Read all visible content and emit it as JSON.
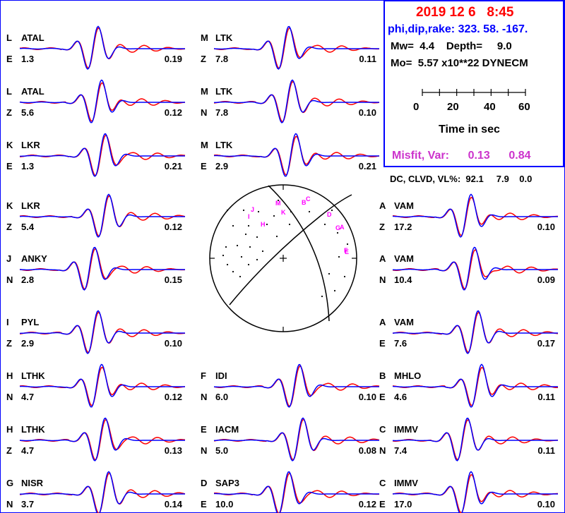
{
  "header": {
    "date": "2019 12 6",
    "time": "8:45",
    "mechanism_label": "phi,dip,rake:",
    "strike": "323.",
    "dip": "58.",
    "rake": "-167.",
    "mw_label": "Mw=",
    "mw": "4.4",
    "depth_label": "Depth=",
    "depth": "9.0",
    "mo_label": "Mo=",
    "mo": "5.57 x10**22 DYNECM",
    "time_ticks": [
      "0",
      "20",
      "40",
      "60"
    ],
    "time_label": "Time  in sec",
    "misfit_label": "Misfit, Var:",
    "misfit": "0.13",
    "var": "0.84"
  },
  "dc_clvd": {
    "label": "DC, CLVD, VL%:",
    "dc": "92.1",
    "clvd": "7.9",
    "vl": "0.0"
  },
  "colors": {
    "observed": "#ff0000",
    "synthetic": "#0000ff",
    "frame": "#0000ff",
    "title": "#ff0000",
    "misfit": "#cc33cc",
    "station_marker": "#ff00ff"
  },
  "stations": [
    {
      "letter": "L",
      "name": "ATAL",
      "comp": "E",
      "dist": "1.3",
      "amp": "0.19",
      "col": 0,
      "row": 0,
      "seed": 1
    },
    {
      "letter": "L",
      "name": "ATAL",
      "comp": "Z",
      "dist": "5.6",
      "amp": "0.12",
      "col": 0,
      "row": 1,
      "seed": 2
    },
    {
      "letter": "K",
      "name": "LKR",
      "comp": "E",
      "dist": "1.3",
      "amp": "0.21",
      "col": 0,
      "row": 2,
      "seed": 3
    },
    {
      "letter": "K",
      "name": "LKR",
      "comp": "Z",
      "dist": "5.4",
      "amp": "0.12",
      "col": 0,
      "row": 3,
      "seed": 4
    },
    {
      "letter": "J",
      "name": "ANKY",
      "comp": "N",
      "dist": "2.8",
      "amp": "0.15",
      "col": 0,
      "row": 4,
      "seed": 5
    },
    {
      "letter": "I",
      "name": "PYL",
      "comp": "Z",
      "dist": "2.9",
      "amp": "0.10",
      "col": 0,
      "row": 5,
      "seed": 6
    },
    {
      "letter": "H",
      "name": "LTHK",
      "comp": "N",
      "dist": "4.7",
      "amp": "0.12",
      "col": 0,
      "row": 6,
      "seed": 7
    },
    {
      "letter": "H",
      "name": "LTHK",
      "comp": "Z",
      "dist": "4.7",
      "amp": "0.13",
      "col": 0,
      "row": 7,
      "seed": 8
    },
    {
      "letter": "G",
      "name": "NISR",
      "comp": "N",
      "dist": "3.7",
      "amp": "0.14",
      "col": 0,
      "row": 8,
      "seed": 9
    },
    {
      "letter": "M",
      "name": "LTK",
      "comp": "Z",
      "dist": "7.8",
      "amp": "0.11",
      "col": 1,
      "row": 0,
      "seed": 10
    },
    {
      "letter": "M",
      "name": "LTK",
      "comp": "N",
      "dist": "7.8",
      "amp": "0.10",
      "col": 1,
      "row": 1,
      "seed": 11
    },
    {
      "letter": "M",
      "name": "LTK",
      "comp": "E",
      "dist": "2.9",
      "amp": "0.21",
      "col": 1,
      "row": 2,
      "seed": 12
    },
    {
      "letter": "F",
      "name": "IDI",
      "comp": "N",
      "dist": "6.0",
      "amp": "0.10",
      "col": 1,
      "row": 6,
      "seed": 13
    },
    {
      "letter": "E",
      "name": "IACM",
      "comp": "N",
      "dist": "5.0",
      "amp": "0.08",
      "col": 1,
      "row": 7,
      "seed": 14
    },
    {
      "letter": "D",
      "name": "SAP3",
      "comp": "E",
      "dist": "10.0",
      "amp": "0.12",
      "col": 1,
      "row": 8,
      "seed": 15
    },
    {
      "letter": "A",
      "name": "VAM",
      "comp": "Z",
      "dist": "17.2",
      "amp": "0.10",
      "col": 2,
      "row": 3,
      "seed": 16
    },
    {
      "letter": "A",
      "name": "VAM",
      "comp": "N",
      "dist": "10.4",
      "amp": "0.09",
      "col": 2,
      "row": 4,
      "seed": 17
    },
    {
      "letter": "A",
      "name": "VAM",
      "comp": "E",
      "dist": "7.6",
      "amp": "0.17",
      "col": 2,
      "row": 5,
      "seed": 18
    },
    {
      "letter": "B",
      "name": "MHLO",
      "comp": "E",
      "dist": "4.6",
      "amp": "0.11",
      "col": 2,
      "row": 6,
      "seed": 19
    },
    {
      "letter": "C",
      "name": "IMMV",
      "comp": "N",
      "dist": "7.4",
      "amp": "0.11",
      "col": 2,
      "row": 7,
      "seed": 20
    },
    {
      "letter": "C",
      "name": "IMMV",
      "comp": "E",
      "dist": "17.0",
      "amp": "0.10",
      "col": 2,
      "row": 8,
      "seed": 21
    }
  ],
  "beachball_labels": [
    "M",
    "C",
    "B",
    "J",
    "K",
    "D",
    "I",
    "H",
    "G",
    "A",
    "F",
    "E"
  ]
}
